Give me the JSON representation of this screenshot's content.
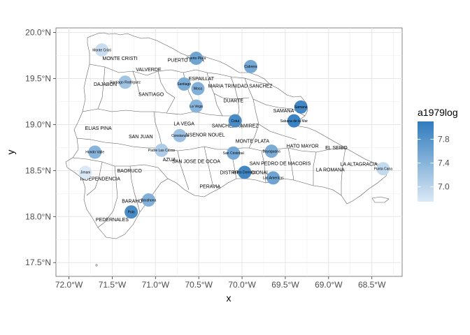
{
  "chart_data": {
    "type": "map",
    "xlabel": "x",
    "ylabel": "y",
    "xlim": [
      -72.15,
      -68.15
    ],
    "ylim": [
      17.35,
      20.05
    ],
    "x_ticks": [
      {
        "value": -72.0,
        "label": "72.0°W"
      },
      {
        "value": -71.5,
        "label": "71.5°W"
      },
      {
        "value": -71.0,
        "label": "71.0°W"
      },
      {
        "value": -70.5,
        "label": "70.5°W"
      },
      {
        "value": -70.0,
        "label": "70.0°W"
      },
      {
        "value": -69.5,
        "label": "69.5°W"
      },
      {
        "value": -69.0,
        "label": "69.0°W"
      },
      {
        "value": -68.5,
        "label": "68.5°W"
      }
    ],
    "y_ticks": [
      {
        "value": 17.5,
        "label": "17.5°N"
      },
      {
        "value": 18.0,
        "label": "18.0°N"
      },
      {
        "value": 18.5,
        "label": "18.5°N"
      },
      {
        "value": 19.0,
        "label": "19.0°N"
      },
      {
        "value": 19.5,
        "label": "19.5°N"
      },
      {
        "value": 20.0,
        "label": "20.0°N"
      }
    ],
    "legend": {
      "title": "a1979log",
      "position": "right",
      "low_color": "#dbe9f6",
      "high_color": "#2f7bbd",
      "range": [
        6.75,
        8.1
      ],
      "ticks": [
        {
          "value": 7.0,
          "label": "7.0"
        },
        {
          "value": 7.4,
          "label": "7.4"
        },
        {
          "value": 7.8,
          "label": "7.8"
        }
      ]
    },
    "province_labels": [
      {
        "name": "MONTE CRISTI",
        "lon": -71.41,
        "lat": 19.72
      },
      {
        "name": "PUERTO PLATA",
        "lon": -70.65,
        "lat": 19.7
      },
      {
        "name": "VALVERDE",
        "lon": -71.08,
        "lat": 19.6
      },
      {
        "name": "ESPAILLAT",
        "lon": -70.47,
        "lat": 19.5
      },
      {
        "name": "DAJABON",
        "lon": -71.58,
        "lat": 19.44
      },
      {
        "name": "MARIA TRINIDAD SANCHEZ",
        "lon": -70.02,
        "lat": 19.42
      },
      {
        "name": "SANTIAGO",
        "lon": -71.05,
        "lat": 19.33
      },
      {
        "name": "DUARTE",
        "lon": -70.1,
        "lat": 19.26
      },
      {
        "name": "SAMANA",
        "lon": -69.52,
        "lat": 19.15
      },
      {
        "name": "LA VEGA",
        "lon": -70.67,
        "lat": 19.01
      },
      {
        "name": "SANCHEZ RAMIREZ",
        "lon": -70.08,
        "lat": 18.99
      },
      {
        "name": "ELIAS PINA",
        "lon": -71.66,
        "lat": 18.96
      },
      {
        "name": "MONSENOR NOUEL",
        "lon": -70.47,
        "lat": 18.89
      },
      {
        "name": "SAN JUAN",
        "lon": -71.17,
        "lat": 18.87
      },
      {
        "name": "MONTE PLATA",
        "lon": -69.88,
        "lat": 18.82
      },
      {
        "name": "HATO MAYOR",
        "lon": -69.3,
        "lat": 18.77
      },
      {
        "name": "EL SEIBO",
        "lon": -68.91,
        "lat": 18.75
      },
      {
        "name": "AZUA",
        "lon": -70.84,
        "lat": 18.62
      },
      {
        "name": "SAN JOSE DE OCOA",
        "lon": -70.53,
        "lat": 18.6
      },
      {
        "name": "SAN PEDRO DE MACORIS",
        "lon": -69.56,
        "lat": 18.58
      },
      {
        "name": "LA ALTAGRACIA",
        "lon": -68.65,
        "lat": 18.57
      },
      {
        "name": "BAORUCO",
        "lon": -71.3,
        "lat": 18.5
      },
      {
        "name": "LA ROMANA",
        "lon": -68.98,
        "lat": 18.51
      },
      {
        "name": "DISTRITO NACIONAL",
        "lon": -69.97,
        "lat": 18.48
      },
      {
        "name": "INDEPENDENCIA",
        "lon": -71.64,
        "lat": 18.41
      },
      {
        "name": "PERAVIA",
        "lon": -70.37,
        "lat": 18.33
      },
      {
        "name": "BARAHONA",
        "lon": -71.23,
        "lat": 18.17
      },
      {
        "name": "PEDERNALES",
        "lon": -71.5,
        "lat": 17.97
      }
    ],
    "cities": [
      {
        "name": "Monte Cristi",
        "lon": -71.62,
        "lat": 19.81,
        "value": 6.9
      },
      {
        "name": "Puerto Plata",
        "lon": -70.53,
        "lat": 19.72,
        "value": 7.6
      },
      {
        "name": "Cabrera",
        "lon": -69.9,
        "lat": 19.63,
        "value": 7.55
      },
      {
        "name": "Santiago Rodriguez",
        "lon": -71.35,
        "lat": 19.46,
        "value": 7.2
      },
      {
        "name": "Santiago",
        "lon": -70.67,
        "lat": 19.44,
        "value": 7.5
      },
      {
        "name": "Moca",
        "lon": -70.51,
        "lat": 19.39,
        "value": 7.45
      },
      {
        "name": "La Vega",
        "lon": -70.53,
        "lat": 19.2,
        "value": 7.4
      },
      {
        "name": "Samana",
        "lon": -69.32,
        "lat": 19.19,
        "value": 7.95
      },
      {
        "name": "Sabana de la Mar",
        "lon": -69.4,
        "lat": 19.04,
        "value": 8.0
      },
      {
        "name": "Cotui",
        "lon": -70.08,
        "lat": 19.04,
        "value": 7.9
      },
      {
        "name": "Constanza",
        "lon": -70.72,
        "lat": 18.88,
        "value": 7.25
      },
      {
        "name": "Bayaguana",
        "lon": -69.66,
        "lat": 18.71,
        "value": 7.5
      },
      {
        "name": "San Cristobal",
        "lon": -70.1,
        "lat": 18.69,
        "value": 7.55
      },
      {
        "name": "Hondo Valle",
        "lon": -71.7,
        "lat": 18.7,
        "value": 7.4
      },
      {
        "name": "Padre Las Casas",
        "lon": -70.93,
        "lat": 18.72,
        "value": 7.1
      },
      {
        "name": "Punta Cana",
        "lon": -68.37,
        "lat": 18.52,
        "value": 6.95
      },
      {
        "name": "Jimani",
        "lon": -71.81,
        "lat": 18.48,
        "value": 6.75
      },
      {
        "name": "Santo Domingo",
        "lon": -69.97,
        "lat": 18.48,
        "value": 7.95
      },
      {
        "name": "Las Americas",
        "lon": -69.64,
        "lat": 18.42,
        "value": 7.6
      },
      {
        "name": "Barahona",
        "lon": -71.08,
        "lat": 18.18,
        "value": 7.45
      },
      {
        "name": "Polo",
        "lon": -71.28,
        "lat": 18.05,
        "value": 7.9
      }
    ]
  }
}
